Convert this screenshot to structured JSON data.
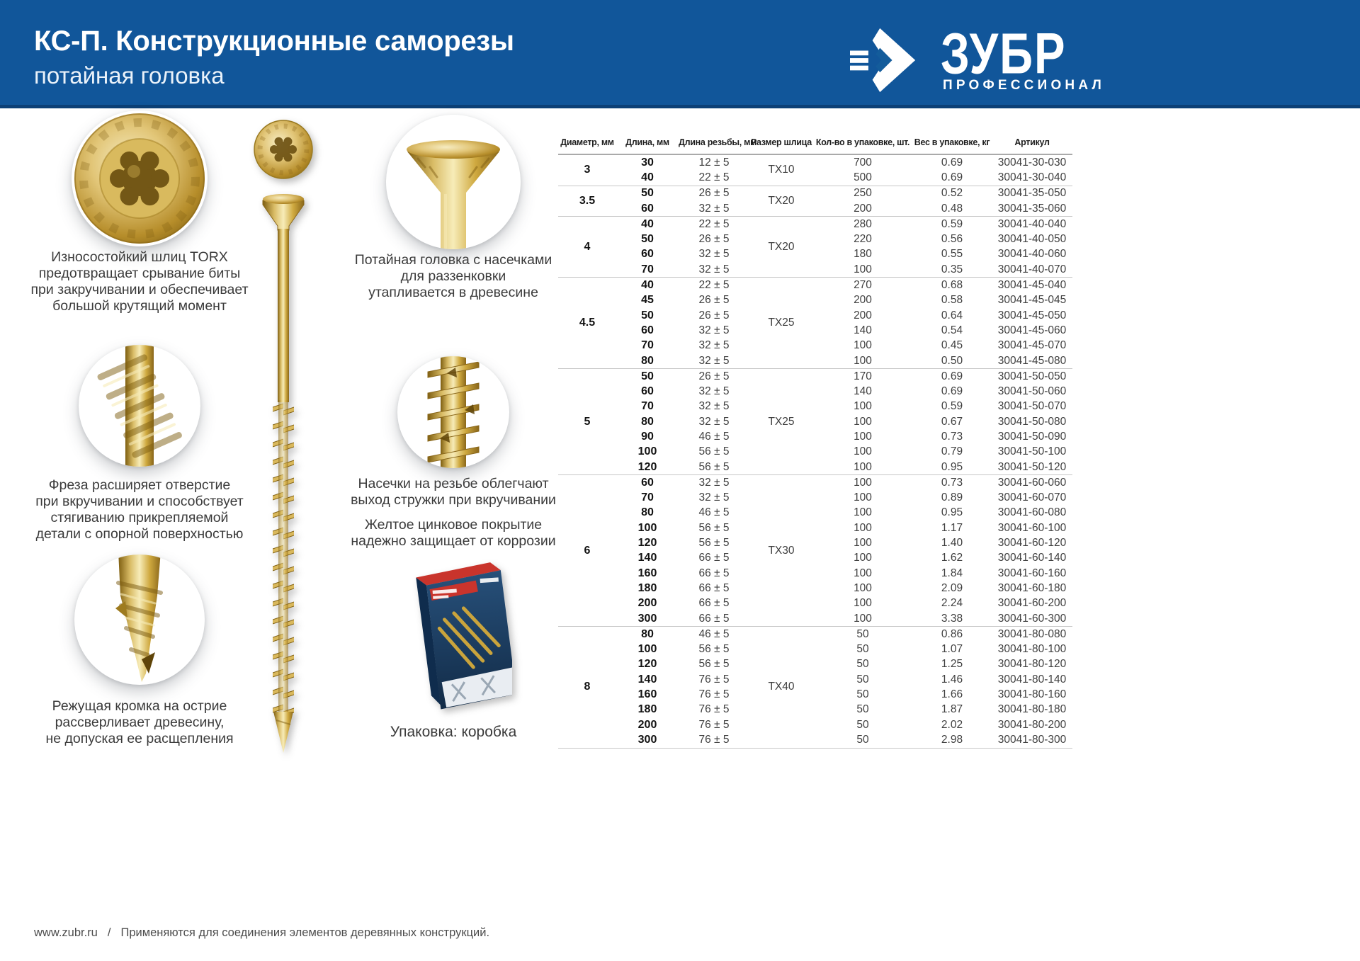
{
  "colors": {
    "header_blue": "#135c9b",
    "gold": "#c9a43c",
    "box_navy": "#1b3f63",
    "box_red": "#c9342c",
    "rule_gray": "#c6c6c6"
  },
  "header": {
    "title": "КС-П. Конструкционные саморезы",
    "subtitle": "потайная головка",
    "brand": "ЗУБР",
    "brand_tagline": "ПРОФЕССИОНАЛ"
  },
  "features": {
    "torx_caption": "Износостойкий шлиц TORX\nпредотвращает срывание биты\nпри закручивании и обеспечивает\nбольшой крутящий момент",
    "head_caption": "Потайная головка с насечками\nдля раззенковки\nутапливается в древесине",
    "mill_caption": "Фреза расширяет отверстие\nпри вкручивании и способствует\nстягиванию прикрепляемой\nдетали с опорной поверхностью",
    "notch_caption": "Насечки на резьбе облегчают\nвыход стружки при вкручивании",
    "coating_caption": "Желтое цинковое покрытие\nнадежно защищает от коррозии",
    "tip_caption": "Режущая кромка на острие\nрассверливает древесину,\nне допуская ее расщепления",
    "package_caption": "Упаковка: коробка"
  },
  "table": {
    "columns": [
      "Диаметр, мм",
      "Длина, мм",
      "Длина резьбы, мм",
      "Размер шлица",
      "Кол-во в упаковке, шт.",
      "Вес в упаковке, кг",
      "Артикул"
    ],
    "groups": [
      {
        "diameter": "3",
        "slot": "TX10",
        "rows": [
          {
            "len": "30",
            "thread": "12 ± 5",
            "qty": "700",
            "weight": "0.69",
            "sku": "30041-30-030"
          },
          {
            "len": "40",
            "thread": "22 ± 5",
            "qty": "500",
            "weight": "0.69",
            "sku": "30041-30-040"
          }
        ]
      },
      {
        "diameter": "3.5",
        "slot": "TX20",
        "rows": [
          {
            "len": "50",
            "thread": "26 ± 5",
            "qty": "250",
            "weight": "0.52",
            "sku": "30041-35-050"
          },
          {
            "len": "60",
            "thread": "32 ± 5",
            "qty": "200",
            "weight": "0.48",
            "sku": "30041-35-060"
          }
        ]
      },
      {
        "diameter": "4",
        "slot": "TX20",
        "rows": [
          {
            "len": "40",
            "thread": "22 ± 5",
            "qty": "280",
            "weight": "0.59",
            "sku": "30041-40-040"
          },
          {
            "len": "50",
            "thread": "26 ± 5",
            "qty": "220",
            "weight": "0.56",
            "sku": "30041-40-050"
          },
          {
            "len": "60",
            "thread": "32 ± 5",
            "qty": "180",
            "weight": "0.55",
            "sku": "30041-40-060"
          },
          {
            "len": "70",
            "thread": "32 ± 5",
            "qty": "100",
            "weight": "0.35",
            "sku": "30041-40-070"
          }
        ]
      },
      {
        "diameter": "4.5",
        "slot": "TX25",
        "rows": [
          {
            "len": "40",
            "thread": "22 ± 5",
            "qty": "270",
            "weight": "0.68",
            "sku": "30041-45-040"
          },
          {
            "len": "45",
            "thread": "26 ± 5",
            "qty": "200",
            "weight": "0.58",
            "sku": "30041-45-045"
          },
          {
            "len": "50",
            "thread": "26 ± 5",
            "qty": "200",
            "weight": "0.64",
            "sku": "30041-45-050"
          },
          {
            "len": "60",
            "thread": "32 ± 5",
            "qty": "140",
            "weight": "0.54",
            "sku": "30041-45-060"
          },
          {
            "len": "70",
            "thread": "32 ± 5",
            "qty": "100",
            "weight": "0.45",
            "sku": "30041-45-070"
          },
          {
            "len": "80",
            "thread": "32 ± 5",
            "qty": "100",
            "weight": "0.50",
            "sku": "30041-45-080"
          }
        ]
      },
      {
        "diameter": "5",
        "slot": "TX25",
        "rows": [
          {
            "len": "50",
            "thread": "26 ± 5",
            "qty": "170",
            "weight": "0.69",
            "sku": "30041-50-050"
          },
          {
            "len": "60",
            "thread": "32 ± 5",
            "qty": "140",
            "weight": "0.69",
            "sku": "30041-50-060"
          },
          {
            "len": "70",
            "thread": "32 ± 5",
            "qty": "100",
            "weight": "0.59",
            "sku": "30041-50-070"
          },
          {
            "len": "80",
            "thread": "32 ± 5",
            "qty": "100",
            "weight": "0.67",
            "sku": "30041-50-080"
          },
          {
            "len": "90",
            "thread": "46 ± 5",
            "qty": "100",
            "weight": "0.73",
            "sku": "30041-50-090"
          },
          {
            "len": "100",
            "thread": "56 ± 5",
            "qty": "100",
            "weight": "0.79",
            "sku": "30041-50-100"
          },
          {
            "len": "120",
            "thread": "56 ± 5",
            "qty": "100",
            "weight": "0.95",
            "sku": "30041-50-120"
          }
        ]
      },
      {
        "diameter": "6",
        "slot": "TX30",
        "rows": [
          {
            "len": "60",
            "thread": "32 ± 5",
            "qty": "100",
            "weight": "0.73",
            "sku": "30041-60-060"
          },
          {
            "len": "70",
            "thread": "32 ± 5",
            "qty": "100",
            "weight": "0.89",
            "sku": "30041-60-070"
          },
          {
            "len": "80",
            "thread": "46 ± 5",
            "qty": "100",
            "weight": "0.95",
            "sku": "30041-60-080"
          },
          {
            "len": "100",
            "thread": "56 ± 5",
            "qty": "100",
            "weight": "1.17",
            "sku": "30041-60-100"
          },
          {
            "len": "120",
            "thread": "56 ± 5",
            "qty": "100",
            "weight": "1.40",
            "sku": "30041-60-120"
          },
          {
            "len": "140",
            "thread": "66 ± 5",
            "qty": "100",
            "weight": "1.62",
            "sku": "30041-60-140"
          },
          {
            "len": "160",
            "thread": "66 ± 5",
            "qty": "100",
            "weight": "1.84",
            "sku": "30041-60-160"
          },
          {
            "len": "180",
            "thread": "66 ± 5",
            "qty": "100",
            "weight": "2.09",
            "sku": "30041-60-180"
          },
          {
            "len": "200",
            "thread": "66 ± 5",
            "qty": "100",
            "weight": "2.24",
            "sku": "30041-60-200"
          },
          {
            "len": "300",
            "thread": "66 ± 5",
            "qty": "100",
            "weight": "3.38",
            "sku": "30041-60-300"
          }
        ]
      },
      {
        "diameter": "8",
        "slot": "TX40",
        "rows": [
          {
            "len": "80",
            "thread": "46 ± 5",
            "qty": "50",
            "weight": "0.86",
            "sku": "30041-80-080"
          },
          {
            "len": "100",
            "thread": "56 ± 5",
            "qty": "50",
            "weight": "1.07",
            "sku": "30041-80-100"
          },
          {
            "len": "120",
            "thread": "56 ± 5",
            "qty": "50",
            "weight": "1.25",
            "sku": "30041-80-120"
          },
          {
            "len": "140",
            "thread": "76 ± 5",
            "qty": "50",
            "weight": "1.46",
            "sku": "30041-80-140"
          },
          {
            "len": "160",
            "thread": "76 ± 5",
            "qty": "50",
            "weight": "1.66",
            "sku": "30041-80-160"
          },
          {
            "len": "180",
            "thread": "76 ± 5",
            "qty": "50",
            "weight": "1.87",
            "sku": "30041-80-180"
          },
          {
            "len": "200",
            "thread": "76 ± 5",
            "qty": "50",
            "weight": "2.02",
            "sku": "30041-80-200"
          },
          {
            "len": "300",
            "thread": "76 ± 5",
            "qty": "50",
            "weight": "2.98",
            "sku": "30041-80-300"
          }
        ]
      }
    ]
  },
  "footer": {
    "url": "www.zubr.ru",
    "separator": "/",
    "note": "Применяются для соединения элементов деревянных конструкций."
  }
}
